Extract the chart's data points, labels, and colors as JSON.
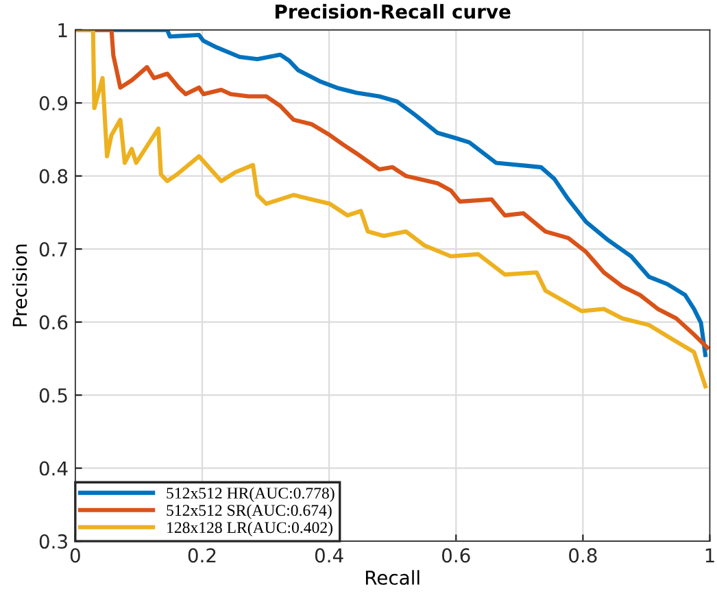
{
  "chart_data": {
    "type": "line",
    "title": "Precision-Recall curve",
    "xlabel": "Recall",
    "ylabel": "Precision",
    "xlim": [
      0,
      1
    ],
    "ylim": [
      0.3,
      1
    ],
    "xticks": [
      0,
      0.2,
      0.4,
      0.6,
      0.8,
      1
    ],
    "yticks": [
      0.3,
      0.4,
      0.5,
      0.6,
      0.7,
      0.8,
      0.9,
      1
    ],
    "grid": true,
    "legend": "bottom left",
    "marker": "none",
    "line_style": "solid",
    "series": [
      {
        "name": "512x512 HR(AUC:0.778)",
        "color": "#0072bd",
        "x": [
          0,
          0.145,
          0.149,
          0.195,
          0.202,
          0.223,
          0.259,
          0.287,
          0.323,
          0.337,
          0.351,
          0.387,
          0.415,
          0.443,
          0.479,
          0.507,
          0.535,
          0.571,
          0.599,
          0.621,
          0.663,
          0.734,
          0.755,
          0.777,
          0.805,
          0.84,
          0.876,
          0.904,
          0.933,
          0.961,
          0.975,
          0.986,
          0.993
        ],
        "values": [
          1,
          1,
          0.991,
          0.993,
          0.985,
          0.976,
          0.963,
          0.96,
          0.966,
          0.958,
          0.945,
          0.929,
          0.92,
          0.914,
          0.909,
          0.902,
          0.884,
          0.859,
          0.852,
          0.846,
          0.818,
          0.812,
          0.796,
          0.768,
          0.737,
          0.712,
          0.69,
          0.662,
          0.652,
          0.637,
          0.618,
          0.599,
          0.555
        ]
      },
      {
        "name": "512x512 SR(AUC:0.674)",
        "color": "#d95319",
        "x": [
          0,
          0.057,
          0.06,
          0.064,
          0.071,
          0.089,
          0.113,
          0.124,
          0.145,
          0.163,
          0.174,
          0.195,
          0.202,
          0.23,
          0.245,
          0.273,
          0.301,
          0.323,
          0.344,
          0.372,
          0.401,
          0.422,
          0.443,
          0.479,
          0.5,
          0.521,
          0.571,
          0.592,
          0.606,
          0.656,
          0.677,
          0.706,
          0.741,
          0.777,
          0.805,
          0.833,
          0.862,
          0.89,
          0.918,
          0.947,
          0.975,
          0.996
        ],
        "values": [
          1,
          1,
          0.965,
          0.949,
          0.921,
          0.931,
          0.949,
          0.934,
          0.94,
          0.921,
          0.912,
          0.921,
          0.912,
          0.918,
          0.912,
          0.909,
          0.909,
          0.896,
          0.877,
          0.871,
          0.856,
          0.843,
          0.831,
          0.809,
          0.812,
          0.8,
          0.79,
          0.78,
          0.765,
          0.768,
          0.746,
          0.749,
          0.724,
          0.715,
          0.696,
          0.668,
          0.649,
          0.637,
          0.618,
          0.605,
          0.583,
          0.565
        ]
      },
      {
        "name": "128x128 LR(AUC:0.402)",
        "color": "#edb120",
        "x": [
          0,
          0.028,
          0.03,
          0.043,
          0.05,
          0.057,
          0.071,
          0.078,
          0.089,
          0.096,
          0.131,
          0.135,
          0.145,
          0.16,
          0.195,
          0.23,
          0.252,
          0.28,
          0.287,
          0.301,
          0.344,
          0.372,
          0.401,
          0.429,
          0.45,
          0.461,
          0.486,
          0.521,
          0.55,
          0.592,
          0.635,
          0.677,
          0.727,
          0.741,
          0.798,
          0.833,
          0.862,
          0.904,
          0.94,
          0.975,
          0.993
        ],
        "values": [
          1,
          1,
          0.893,
          0.934,
          0.827,
          0.856,
          0.877,
          0.818,
          0.837,
          0.818,
          0.865,
          0.802,
          0.793,
          0.802,
          0.827,
          0.793,
          0.805,
          0.815,
          0.774,
          0.762,
          0.774,
          0.768,
          0.762,
          0.746,
          0.752,
          0.724,
          0.718,
          0.724,
          0.705,
          0.69,
          0.693,
          0.665,
          0.668,
          0.643,
          0.615,
          0.618,
          0.605,
          0.596,
          0.577,
          0.559,
          0.512
        ]
      }
    ]
  }
}
